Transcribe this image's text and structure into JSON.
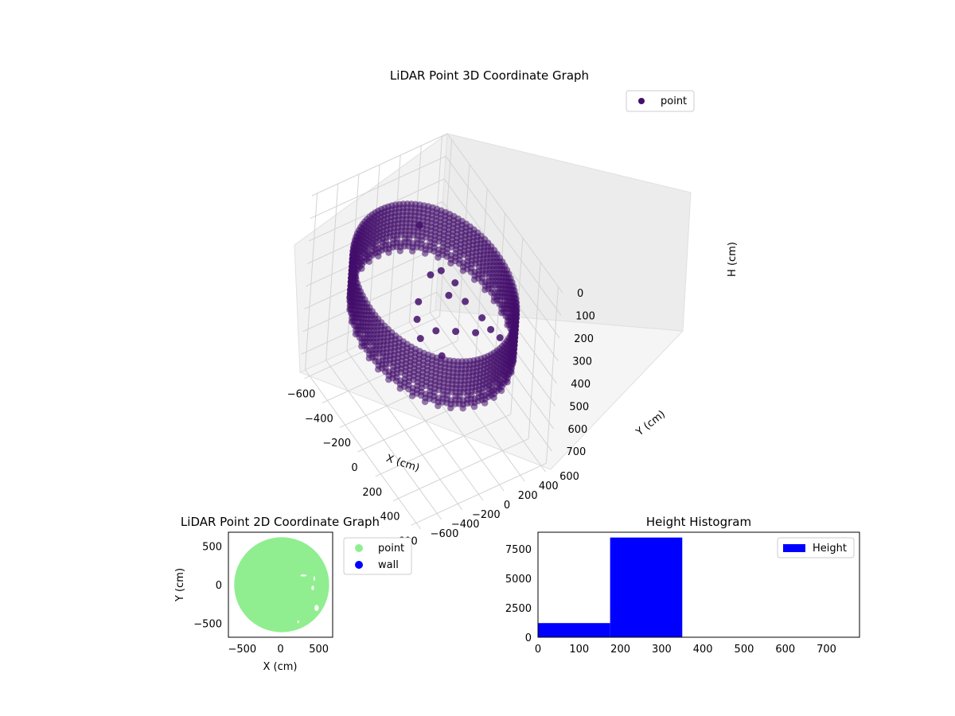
{
  "chart_data": [
    {
      "type": "scatter",
      "projection": "3d",
      "title": "LiDAR Point 3D Coordinate Graph",
      "xlabel": "X (cm)",
      "ylabel": "Y (cm)",
      "zlabel": "H (cm)",
      "xticks": [
        -600,
        -400,
        -200,
        0,
        200,
        400,
        600
      ],
      "yticks": [
        -600,
        -400,
        -200,
        0,
        200,
        400,
        600
      ],
      "zticks": [
        0,
        100,
        200,
        300,
        400,
        500,
        600,
        700
      ],
      "xlim": [
        -650,
        650
      ],
      "ylim": [
        -650,
        650
      ],
      "zlim": [
        780,
        0
      ],
      "z_inverted": true,
      "grid": true,
      "legend": {
        "position": "top-right",
        "entries": [
          "point"
        ]
      },
      "series": [
        {
          "name": "point",
          "color": "#440f6c",
          "description_shape": "ring wall of radius ~600 cm, heights ~200-360 cm, with inner clutter points",
          "ring_radius": 600,
          "height_range": [
            170,
            360
          ],
          "clutter_points": [
            [
              -300,
              100,
              100
            ],
            [
              -100,
              50,
              200
            ],
            [
              -50,
              -100,
              260
            ],
            [
              0,
              -150,
              300
            ],
            [
              100,
              -200,
              320
            ],
            [
              150,
              -100,
              280
            ],
            [
              250,
              0,
              250
            ],
            [
              300,
              150,
              260
            ],
            [
              350,
              250,
              240
            ],
            [
              400,
              300,
              260
            ],
            [
              200,
              300,
              280
            ],
            [
              -150,
              200,
              240
            ],
            [
              50,
              100,
              220
            ],
            [
              120,
              200,
              230
            ],
            [
              -50,
              250,
              250
            ],
            [
              280,
              -150,
              310
            ]
          ]
        }
      ]
    },
    {
      "type": "scatter",
      "title": "LiDAR Point 2D Coordinate Graph",
      "xlabel": "X (cm)",
      "ylabel": "Y (cm)",
      "xticks": [
        -500,
        0,
        500
      ],
      "yticks": [
        -500,
        0,
        500
      ],
      "xlim": [
        -680,
        680
      ],
      "ylim": [
        -680,
        680
      ],
      "legend": {
        "position": "outside-right",
        "entries": [
          "point",
          "wall"
        ]
      },
      "series": [
        {
          "name": "point",
          "color": "#90ee90",
          "shape": "filled disk radius ~620 cm with small gaps near x 200..450, y -500..150"
        },
        {
          "name": "wall",
          "color": "#0000ff",
          "values": []
        }
      ]
    },
    {
      "type": "bar",
      "subtype": "histogram",
      "title": "Height Histogram",
      "xticks": [
        0,
        100,
        200,
        300,
        400,
        500,
        600,
        700
      ],
      "yticks": [
        0,
        2500,
        5000,
        7500
      ],
      "xlim": [
        0,
        780
      ],
      "ylim": [
        0,
        8900
      ],
      "legend": {
        "position": "top-right",
        "entries": [
          "Height"
        ]
      },
      "series": [
        {
          "name": "Height",
          "color": "#0000ff",
          "bins": [
            {
              "start": 0,
              "end": 175,
              "count": 1200
            },
            {
              "start": 175,
              "end": 350,
              "count": 8450
            },
            {
              "start": 350,
              "end": 525,
              "count": 0
            },
            {
              "start": 525,
              "end": 700,
              "count": 0
            }
          ]
        }
      ]
    }
  ]
}
